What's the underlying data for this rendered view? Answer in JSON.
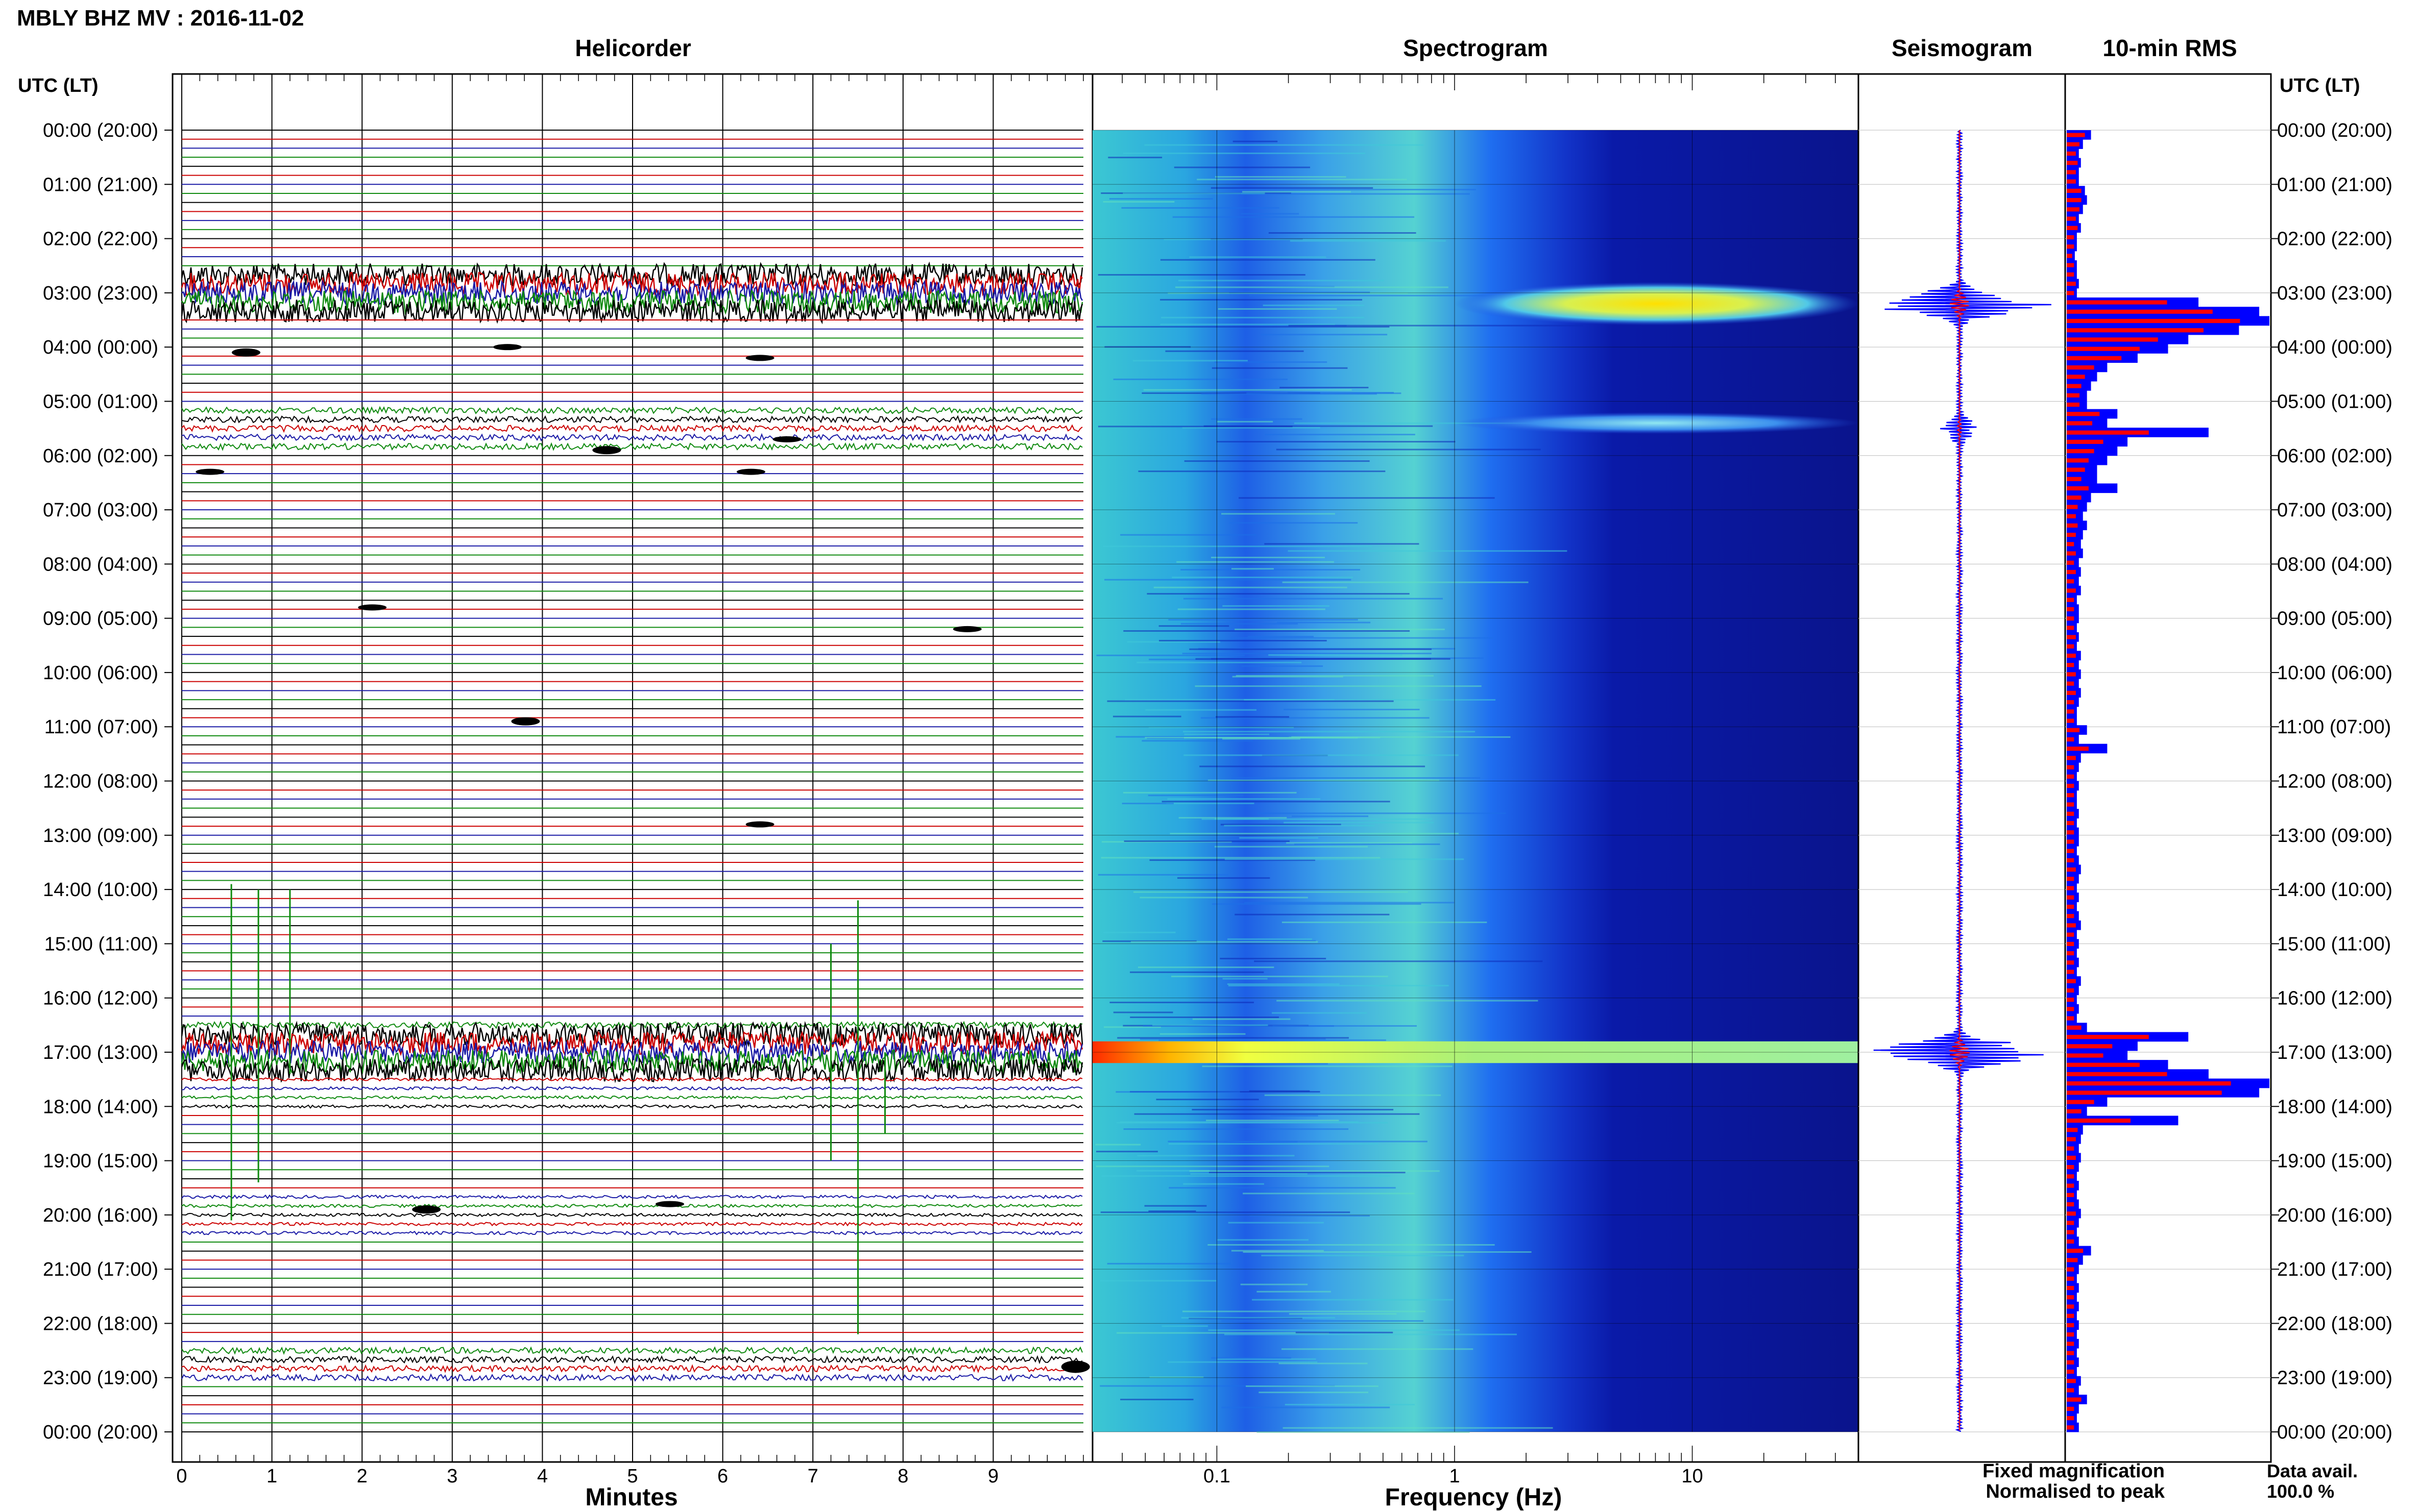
{
  "header": {
    "title": "MBLY BHZ MV : 2016-11-02",
    "panel_titles": {
      "helicorder": "Helicorder",
      "spectrogram": "Spectrogram",
      "seismogram": "Seismogram",
      "rms": "10-min RMS"
    },
    "time_axis_label_left": "UTC (LT)",
    "time_axis_label_right": "UTC (LT)"
  },
  "footer": {
    "x_label_helicorder": "Minutes",
    "x_label_spectrogram": "Frequency (Hz)",
    "legend_fixed": "Fixed magnification",
    "legend_normalised": "Normalised to peak",
    "data_avail_label": "Data avail.",
    "data_avail_value": "100.0 %"
  },
  "colors": {
    "trace_cycle": [
      "#000000",
      "#cc0000",
      "#1a1aa6",
      "#0f8a0f"
    ],
    "legend_fixed": "#1a1aff",
    "legend_normalised": "#ff1a1a",
    "rms_fixed": "#0000ff",
    "rms_normalised": "#ff0000",
    "spectrogram_background": "#0a148c"
  },
  "chart_data": [
    {
      "type": "line",
      "name": "helicorder",
      "x_label": "Minutes",
      "x_ticks": [
        "0",
        "1",
        "2",
        "3",
        "4",
        "5",
        "6",
        "7",
        "8",
        "9"
      ],
      "xlim": [
        0,
        10
      ],
      "lines_per_hour": 6,
      "hour_ticks": [
        "00:00 (20:00)",
        "01:00 (21:00)",
        "02:00 (22:00)",
        "03:00 (23:00)",
        "04:00 (00:00)",
        "05:00 (01:00)",
        "06:00 (02:00)",
        "07:00 (03:00)",
        "08:00 (04:00)",
        "09:00 (05:00)",
        "10:00 (06:00)",
        "11:00 (07:00)",
        "12:00 (08:00)",
        "13:00 (09:00)",
        "14:00 (10:00)",
        "15:00 (11:00)",
        "16:00 (12:00)",
        "17:00 (13:00)",
        "18:00 (14:00)",
        "19:00 (15:00)",
        "20:00 (16:00)",
        "21:00 (17:00)",
        "22:00 (18:00)",
        "23:00 (19:00)",
        "00:00 (20:00)"
      ],
      "events": [
        {
          "hour": 3.0,
          "start_min": 0,
          "end_min": 10,
          "amplitude": "high"
        },
        {
          "hour": 5.5,
          "start_min": 0.5,
          "end_min": 10,
          "amplitude": "medium"
        },
        {
          "hour": 17.0,
          "start_min": 0,
          "end_min": 10,
          "amplitude": "high"
        },
        {
          "hour": 16.8,
          "start_min": 7.5,
          "end_min": 9.5,
          "amplitude": "medium"
        },
        {
          "hour": 17.7,
          "start_min": 5,
          "end_min": 7,
          "amplitude": "low"
        },
        {
          "hour": 20.0,
          "start_min": 2.3,
          "end_min": 3,
          "amplitude": "low"
        },
        {
          "hour": 22.8,
          "start_min": 9.7,
          "end_min": 9.9,
          "amplitude": "medium"
        }
      ]
    },
    {
      "type": "heatmap",
      "name": "spectrogram",
      "x_label": "Frequency (Hz)",
      "x_scale": "log",
      "xlim": [
        0.03,
        50
      ],
      "x_ticks": [
        "0.1",
        "1",
        "10"
      ],
      "features": [
        {
          "hour_start": 2.8,
          "hour_end": 3.6,
          "freq_min": 1,
          "freq_max": 50,
          "intensity": "high"
        },
        {
          "hour_start": 5.2,
          "hour_end": 5.6,
          "freq_min": 1,
          "freq_max": 50,
          "intensity": "medium"
        },
        {
          "hour_start": 16.8,
          "hour_end": 17.2,
          "freq_min": 0.03,
          "freq_max": 50,
          "intensity": "high"
        }
      ]
    },
    {
      "type": "line",
      "name": "seismogram",
      "bursts": [
        {
          "hour": 3.2,
          "amplitude": 0.95
        },
        {
          "hour": 5.5,
          "amplitude": 0.2
        },
        {
          "hour": 17.0,
          "amplitude": 1.0
        }
      ]
    },
    {
      "type": "bar",
      "name": "10-min RMS",
      "orientation": "horizontal",
      "series": [
        {
          "name": "Fixed magnification",
          "values": [
            0.12,
            0.08,
            0.06,
            0.07,
            0.06,
            0.06,
            0.09,
            0.1,
            0.08,
            0.06,
            0.07,
            0.05,
            0.05,
            0.04,
            0.05,
            0.05,
            0.06,
            0.05,
            0.65,
            0.95,
            1.0,
            0.85,
            0.6,
            0.5,
            0.35,
            0.2,
            0.15,
            0.12,
            0.1,
            0.1,
            0.25,
            0.2,
            0.7,
            0.3,
            0.25,
            0.2,
            0.15,
            0.15,
            0.25,
            0.12,
            0.1,
            0.08,
            0.1,
            0.08,
            0.07,
            0.08,
            0.06,
            0.07,
            0.06,
            0.07,
            0.05,
            0.06,
            0.06,
            0.05,
            0.06,
            0.05,
            0.07,
            0.06,
            0.07,
            0.06,
            0.07,
            0.06,
            0.05,
            0.05,
            0.1,
            0.06,
            0.2,
            0.07,
            0.06,
            0.05,
            0.06,
            0.05,
            0.05,
            0.06,
            0.05,
            0.06,
            0.06,
            0.05,
            0.06,
            0.07,
            0.06,
            0.05,
            0.06,
            0.05,
            0.06,
            0.07,
            0.05,
            0.06,
            0.05,
            0.06,
            0.05,
            0.07,
            0.06,
            0.05,
            0.06,
            0.05,
            0.1,
            0.6,
            0.35,
            0.3,
            0.5,
            0.7,
            1.0,
            0.95,
            0.2,
            0.1,
            0.55,
            0.08,
            0.07,
            0.06,
            0.07,
            0.06,
            0.05,
            0.06,
            0.05,
            0.06,
            0.07,
            0.06,
            0.05,
            0.06,
            0.12,
            0.08,
            0.06,
            0.05,
            0.06,
            0.05,
            0.06,
            0.05,
            0.06,
            0.05,
            0.06,
            0.05,
            0.06,
            0.05,
            0.07,
            0.06,
            0.1,
            0.06,
            0.05,
            0.06
          ]
        },
        {
          "name": "Normalised to peak",
          "values": [
            0.1,
            0.07,
            0.05,
            0.06,
            0.05,
            0.05,
            0.08,
            0.08,
            0.07,
            0.05,
            0.06,
            0.04,
            0.04,
            0.03,
            0.04,
            0.04,
            0.05,
            0.04,
            0.55,
            0.8,
            0.95,
            0.75,
            0.5,
            0.4,
            0.3,
            0.15,
            0.1,
            0.08,
            0.07,
            0.07,
            0.18,
            0.14,
            0.45,
            0.2,
            0.15,
            0.12,
            0.1,
            0.08,
            0.12,
            0.08,
            0.06,
            0.05,
            0.06,
            0.05,
            0.04,
            0.05,
            0.04,
            0.05,
            0.04,
            0.05,
            0.04,
            0.04,
            0.04,
            0.04,
            0.05,
            0.04,
            0.05,
            0.04,
            0.05,
            0.04,
            0.05,
            0.04,
            0.04,
            0.04,
            0.07,
            0.04,
            0.12,
            0.05,
            0.04,
            0.04,
            0.04,
            0.04,
            0.04,
            0.04,
            0.04,
            0.04,
            0.04,
            0.04,
            0.04,
            0.05,
            0.04,
            0.04,
            0.04,
            0.04,
            0.04,
            0.05,
            0.04,
            0.04,
            0.04,
            0.04,
            0.04,
            0.05,
            0.04,
            0.04,
            0.04,
            0.04,
            0.08,
            0.45,
            0.25,
            0.2,
            0.4,
            0.55,
            0.9,
            0.85,
            0.15,
            0.08,
            0.35,
            0.06,
            0.05,
            0.04,
            0.05,
            0.04,
            0.04,
            0.04,
            0.04,
            0.04,
            0.05,
            0.04,
            0.04,
            0.04,
            0.09,
            0.06,
            0.04,
            0.04,
            0.04,
            0.04,
            0.04,
            0.04,
            0.04,
            0.04,
            0.04,
            0.04,
            0.04,
            0.04,
            0.05,
            0.04,
            0.08,
            0.04,
            0.04,
            0.04
          ]
        }
      ]
    }
  ]
}
